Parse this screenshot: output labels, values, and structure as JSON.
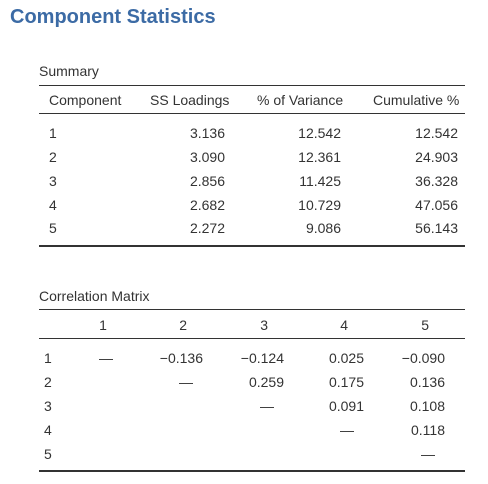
{
  "title": "Component Statistics",
  "summary": {
    "caption": "Summary",
    "headers": [
      "Component",
      "SS Loadings",
      "% of Variance",
      "Cumulative %"
    ],
    "rows": [
      [
        "1",
        "3.136",
        "12.542",
        "12.542"
      ],
      [
        "2",
        "3.090",
        "12.361",
        "24.903"
      ],
      [
        "3",
        "2.856",
        "11.425",
        "36.328"
      ],
      [
        "4",
        "2.682",
        "10.729",
        "47.056"
      ],
      [
        "5",
        "2.272",
        "9.086",
        "56.143"
      ]
    ]
  },
  "correlation": {
    "caption": "Correlation Matrix",
    "headers": [
      "1",
      "2",
      "3",
      "4",
      "5"
    ],
    "rows": [
      {
        "label": "1",
        "cells": [
          "—",
          "−0.136",
          "−0.124",
          "0.025",
          "−0.090"
        ]
      },
      {
        "label": "2",
        "cells": [
          "",
          "—",
          "0.259",
          "0.175",
          "0.136"
        ]
      },
      {
        "label": "3",
        "cells": [
          "",
          "",
          "—",
          "0.091",
          "0.108"
        ]
      },
      {
        "label": "4",
        "cells": [
          "",
          "",
          "",
          "—",
          "0.118"
        ]
      },
      {
        "label": "5",
        "cells": [
          "",
          "",
          "",
          "",
          "—"
        ]
      }
    ]
  }
}
